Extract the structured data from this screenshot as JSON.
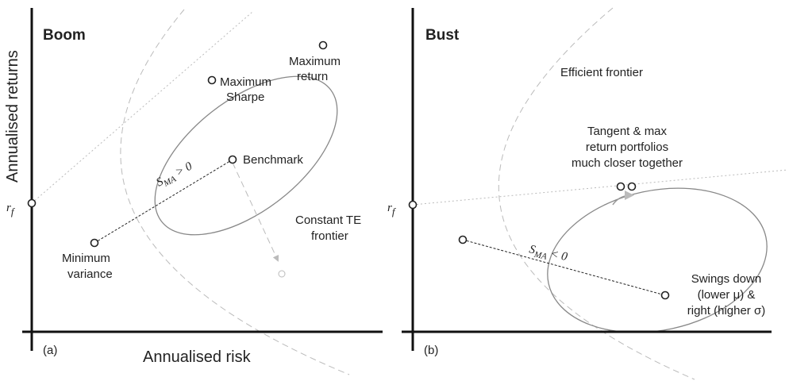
{
  "y_axis_label": "Annualised returns",
  "x_axis_label": "Annualised risk",
  "panels": [
    {
      "tag": "(a)",
      "title": "Boom",
      "rf": {
        "base": "r",
        "sub": "f"
      },
      "max_return": [
        "Maximum",
        "return"
      ],
      "max_sharpe": [
        "Maximum",
        "Sharpe"
      ],
      "benchmark": "Benchmark",
      "sma": {
        "base": "S",
        "sub": "MA",
        "rel": "> 0"
      },
      "min_variance": [
        "Minimum",
        "variance"
      ],
      "te_frontier": [
        "Constant TE",
        "frontier"
      ]
    },
    {
      "tag": "(b)",
      "title": "Bust",
      "rf": {
        "base": "r",
        "sub": "f"
      },
      "efficient_frontier": "Efficient frontier",
      "tangent_note": [
        "Tangent & max",
        "return portfolios",
        "much closer together"
      ],
      "sma": {
        "base": "S",
        "sub": "MA",
        "rel": "< 0"
      },
      "swing_note": [
        "Swings down",
        "(lower μ) &",
        "right (higher σ)"
      ]
    }
  ]
}
